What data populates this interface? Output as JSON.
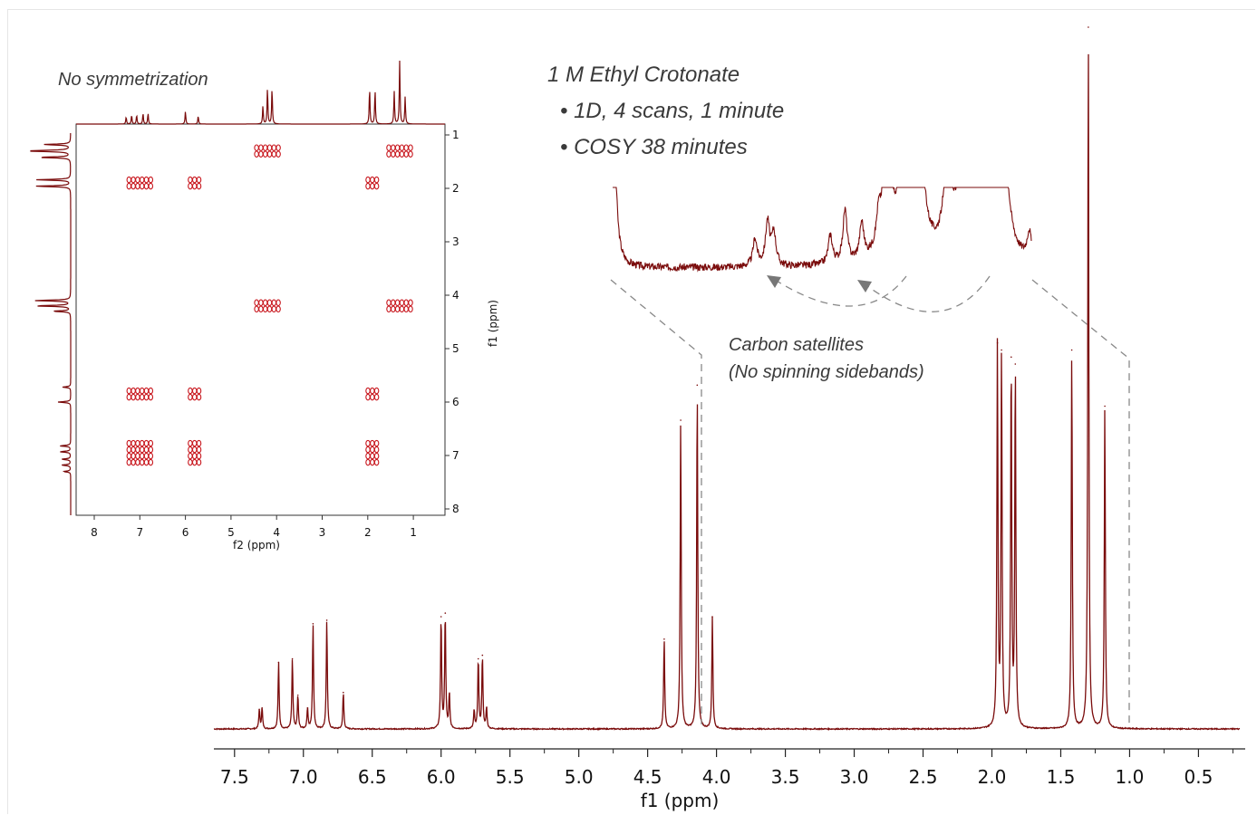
{
  "chart_data": {
    "type": "line",
    "title": "1 M Ethyl Crotonate",
    "subtitle_lines": [
      "• 1D, 4 scans, 1 minute",
      "• COSY 38 minutes"
    ],
    "xlabel": "f1 (ppm)",
    "xlim": [
      7.65,
      0.2
    ],
    "x_ticks": [
      "7.5",
      "7.0",
      "6.5",
      "6.0",
      "5.5",
      "5.0",
      "4.5",
      "4.0",
      "3.5",
      "3.0",
      "2.5",
      "2.0",
      "1.5",
      "1.0",
      "0.5"
    ],
    "x_tick_values": [
      7.5,
      7.0,
      6.5,
      6.0,
      5.5,
      5.0,
      4.5,
      4.0,
      3.5,
      3.0,
      2.5,
      2.0,
      1.5,
      1.0,
      0.5
    ],
    "line_color": "#7a0b0b",
    "peaks": [
      {
        "ppm": 7.32,
        "height": 0.028
      },
      {
        "ppm": 7.3,
        "height": 0.03
      },
      {
        "ppm": 7.18,
        "height": 0.095
      },
      {
        "ppm": 7.08,
        "height": 0.1
      },
      {
        "ppm": 7.04,
        "height": 0.048
      },
      {
        "ppm": 6.97,
        "height": 0.03
      },
      {
        "ppm": 6.93,
        "height": 0.15
      },
      {
        "ppm": 6.83,
        "height": 0.155
      },
      {
        "ppm": 6.71,
        "height": 0.052
      },
      {
        "ppm": 6.0,
        "height": 0.16
      },
      {
        "ppm": 5.97,
        "height": 0.165
      },
      {
        "ppm": 5.94,
        "height": 0.05
      },
      {
        "ppm": 5.76,
        "height": 0.026
      },
      {
        "ppm": 5.73,
        "height": 0.1
      },
      {
        "ppm": 5.7,
        "height": 0.105
      },
      {
        "ppm": 5.67,
        "height": 0.03
      },
      {
        "ppm": 4.38,
        "height": 0.128
      },
      {
        "ppm": 4.26,
        "height": 0.44
      },
      {
        "ppm": 4.14,
        "height": 0.49
      },
      {
        "ppm": 4.03,
        "height": 0.16
      },
      {
        "ppm": 1.96,
        "height": 0.55
      },
      {
        "ppm": 1.93,
        "height": 0.54
      },
      {
        "ppm": 1.86,
        "height": 0.53
      },
      {
        "ppm": 1.83,
        "height": 0.52
      },
      {
        "ppm": 1.42,
        "height": 0.54
      },
      {
        "ppm": 1.3,
        "height": 1.0
      },
      {
        "ppm": 1.18,
        "height": 0.46
      }
    ],
    "inset_annotation": [
      "Carbon satellites",
      "(No spinning sidebands)"
    ],
    "cosy_inset": {
      "title": "No symmetrization",
      "xlabel": "f2 (ppm)",
      "ylabel": "f1 (ppm)",
      "x_ticks": [
        "8",
        "7",
        "6",
        "5",
        "4",
        "3",
        "2",
        "1"
      ],
      "y_ticks": [
        "1",
        "2",
        "3",
        "4",
        "5",
        "6",
        "7",
        "8"
      ],
      "contour_color": "#c8161d",
      "groups": [
        {
          "f2": 4.2,
          "f1": 1.3
        },
        {
          "f2": 1.3,
          "f1": 1.3
        },
        {
          "f2": 7.0,
          "f1": 1.9
        },
        {
          "f2": 5.8,
          "f1": 1.9
        },
        {
          "f2": 1.9,
          "f1": 1.9
        },
        {
          "f2": 4.2,
          "f1": 4.2
        },
        {
          "f2": 1.3,
          "f1": 4.2
        },
        {
          "f2": 7.0,
          "f1": 5.85
        },
        {
          "f2": 5.8,
          "f1": 5.85
        },
        {
          "f2": 1.9,
          "f1": 5.85
        },
        {
          "f2": 7.0,
          "f1": 6.95
        },
        {
          "f2": 5.8,
          "f1": 6.95
        },
        {
          "f2": 1.9,
          "f1": 6.95
        }
      ]
    }
  }
}
